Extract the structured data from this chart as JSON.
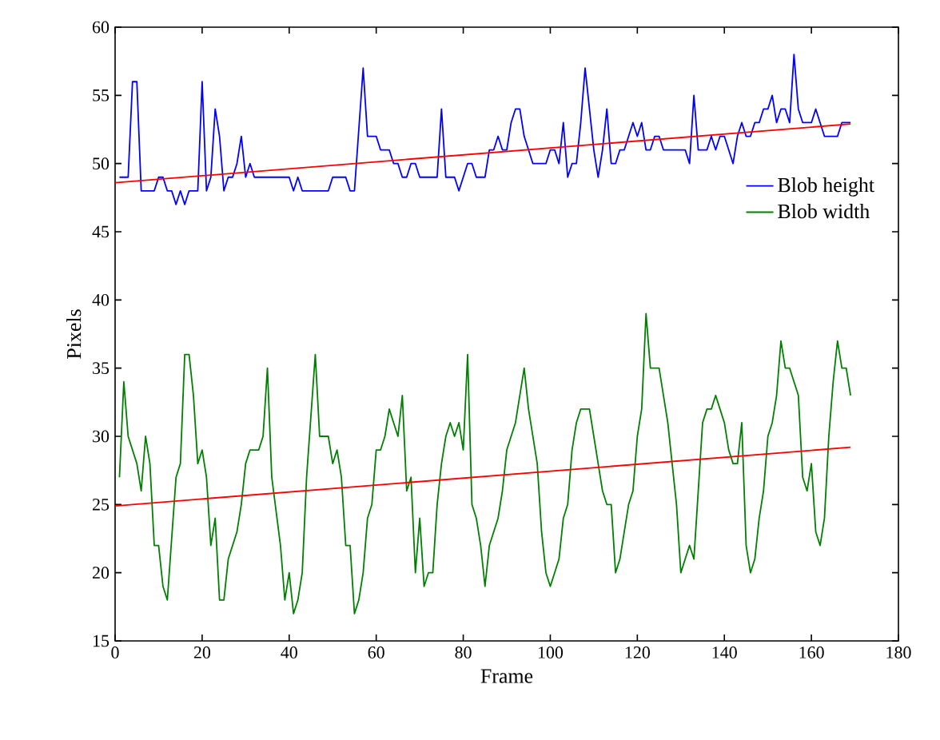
{
  "chart_data": {
    "type": "line",
    "xlabel": "Frame",
    "ylabel": "Pixels",
    "xlim": [
      0,
      180
    ],
    "ylim": [
      15,
      60
    ],
    "xticks": [
      0,
      20,
      40,
      60,
      80,
      100,
      120,
      140,
      160,
      180
    ],
    "yticks": [
      15,
      20,
      25,
      30,
      35,
      40,
      45,
      50,
      55,
      60
    ],
    "grid": false,
    "legend": "right",
    "marker": "none",
    "line_style": "solid",
    "series": [
      {
        "name": "Blob height",
        "color": "#0000ff",
        "x": [
          1,
          3,
          4,
          5,
          6,
          7,
          9,
          10,
          11,
          12,
          13,
          14,
          15,
          16,
          17,
          19,
          20,
          21,
          22,
          23,
          24,
          25,
          26,
          27,
          28,
          29,
          30,
          31,
          32,
          40,
          41,
          42,
          43,
          49,
          50,
          53,
          54,
          55,
          57,
          58,
          60,
          61,
          63,
          64,
          65,
          66,
          67,
          68,
          69,
          70,
          74,
          75,
          76,
          78,
          79,
          80,
          81,
          82,
          83,
          85,
          86,
          87,
          88,
          89,
          90,
          91,
          92,
          93,
          94,
          95,
          96,
          99,
          100,
          101,
          102,
          103,
          104,
          105,
          106,
          107,
          108,
          109,
          110,
          111,
          112,
          113,
          114,
          115,
          116,
          117,
          118,
          119,
          120,
          121,
          122,
          123,
          124,
          125,
          126,
          131,
          132,
          133,
          134,
          136,
          137,
          138,
          139,
          140,
          141,
          142,
          143,
          144,
          145,
          146,
          147,
          148,
          149,
          150,
          151,
          152,
          153,
          154,
          155,
          156,
          157,
          158,
          160,
          161,
          162,
          163,
          166,
          167,
          169
        ],
        "values": [
          49,
          49,
          56,
          56,
          48,
          48,
          48,
          49,
          49,
          48,
          48,
          47,
          48,
          47,
          48,
          48,
          56,
          48,
          49,
          54,
          52,
          48,
          49,
          49,
          50,
          52,
          49,
          50,
          49,
          49,
          48,
          49,
          48,
          48,
          49,
          49,
          48,
          48,
          57,
          52,
          52,
          51,
          51,
          50,
          50,
          49,
          49,
          50,
          50,
          49,
          49,
          54,
          49,
          49,
          48,
          49,
          50,
          50,
          49,
          49,
          51,
          51,
          52,
          51,
          51,
          53,
          54,
          54,
          52,
          51,
          50,
          50,
          51,
          51,
          50,
          53,
          49,
          50,
          50,
          53,
          57,
          54,
          51,
          49,
          51,
          54,
          50,
          50,
          51,
          51,
          52,
          53,
          52,
          53,
          51,
          51,
          52,
          52,
          51,
          51,
          50,
          55,
          51,
          51,
          52,
          51,
          52,
          52,
          51,
          50,
          52,
          53,
          52,
          52,
          53,
          53,
          54,
          54,
          55,
          53,
          54,
          54,
          53,
          58,
          54,
          53,
          53,
          54,
          53,
          52,
          52,
          53,
          53
        ]
      },
      {
        "name": "Blob width",
        "color": "#008000",
        "x": [
          1,
          2,
          3,
          5,
          6,
          7,
          8,
          9,
          10,
          11,
          12,
          14,
          15,
          16,
          17,
          18,
          19,
          20,
          21,
          22,
          23,
          24,
          25,
          26,
          28,
          29,
          30,
          31,
          33,
          34,
          35,
          36,
          38,
          39,
          40,
          41,
          42,
          43,
          44,
          46,
          47,
          49,
          50,
          51,
          52,
          53,
          54,
          55,
          56,
          57,
          58,
          59,
          60,
          61,
          62,
          63,
          64,
          65,
          66,
          67,
          68,
          69,
          70,
          71,
          72,
          73,
          74,
          75,
          76,
          77,
          78,
          79,
          80,
          81,
          82,
          83,
          84,
          85,
          86,
          88,
          89,
          90,
          91,
          92,
          94,
          95,
          96,
          97,
          98,
          99,
          100,
          101,
          102,
          103,
          104,
          105,
          106,
          107,
          109,
          110,
          111,
          112,
          113,
          114,
          115,
          116,
          117,
          118,
          119,
          120,
          121,
          122,
          123,
          125,
          126,
          127,
          128,
          129,
          130,
          131,
          132,
          133,
          134,
          135,
          136,
          137,
          138,
          139,
          140,
          141,
          142,
          143,
          144,
          145,
          146,
          147,
          148,
          149,
          150,
          151,
          152,
          153,
          154,
          155,
          156,
          157,
          158,
          159,
          160,
          161,
          162,
          163,
          164,
          165,
          166,
          167,
          168,
          169
        ],
        "values": [
          27,
          34,
          30,
          28,
          26,
          30,
          28,
          22,
          22,
          19,
          18,
          27,
          28,
          36,
          36,
          33,
          28,
          29,
          27,
          22,
          24,
          18,
          18,
          21,
          23,
          25,
          28,
          29,
          29,
          30,
          35,
          27,
          22,
          18,
          20,
          17,
          18,
          20,
          27,
          36,
          30,
          30,
          28,
          29,
          27,
          22,
          22,
          17,
          18,
          20,
          24,
          25,
          29,
          29,
          30,
          32,
          31,
          30,
          33,
          26,
          27,
          20,
          24,
          19,
          20,
          20,
          25,
          28,
          30,
          31,
          30,
          31,
          29,
          36,
          25,
          24,
          22,
          19,
          22,
          24,
          26,
          29,
          30,
          31,
          35,
          32,
          30,
          28,
          23,
          20,
          19,
          20,
          21,
          24,
          25,
          29,
          31,
          32,
          32,
          30,
          28,
          26,
          25,
          25,
          20,
          21,
          23,
          25,
          26,
          30,
          32,
          39,
          35,
          35,
          33,
          31,
          28,
          25,
          20,
          21,
          22,
          21,
          26,
          31,
          32,
          32,
          33,
          32,
          31,
          29,
          28,
          28,
          31,
          22,
          20,
          21,
          24,
          26,
          30,
          31,
          33,
          37,
          35,
          35,
          34,
          33,
          27,
          26,
          28,
          23,
          22,
          24,
          30,
          34,
          37,
          35,
          35,
          33
        ]
      },
      {
        "type": "line",
        "color": "#ff0000",
        "x": [
          0,
          169
        ],
        "values": [
          48.6,
          52.9
        ]
      },
      {
        "type": "line",
        "color": "#ff0000",
        "x": [
          0,
          169
        ],
        "values": [
          24.9,
          29.2
        ]
      }
    ]
  }
}
